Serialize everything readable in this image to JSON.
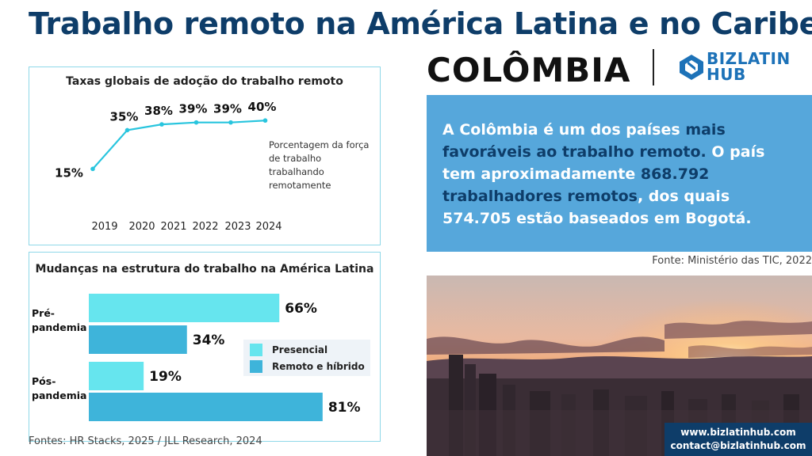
{
  "header": {
    "title": "Trabalho remoto na América Latina e no Caribe:",
    "country": "COLÔMBIA"
  },
  "logo": {
    "line1": "BIZLATIN",
    "line2": "HUB",
    "icon": "bizlatinhub-logo-icon"
  },
  "chart_data": [
    {
      "type": "line",
      "title": "Taxas globais de adoção do trabalho remoto",
      "x": [
        "2019",
        "2020",
        "2021",
        "2022",
        "2023",
        "2024"
      ],
      "series": [
        {
          "values": [
            15,
            35,
            38,
            39,
            39,
            40
          ],
          "labels": [
            "15%",
            "35%",
            "38%",
            "39%",
            "39%",
            "40%"
          ]
        }
      ],
      "annotation": "Porcentagem da força de trabalho trabalhando remotamente",
      "ylim": [
        0,
        45
      ],
      "grid": false,
      "color": "#29c5de"
    },
    {
      "type": "bar",
      "orientation": "horizontal",
      "title": "Mudanças na estrutura do trabalho na América Latina",
      "categories": [
        "Pré-pandemia",
        "Pós-pandemia"
      ],
      "category_lines": [
        [
          "Pré-",
          "pandemia"
        ],
        [
          "Pós-",
          "pandemia"
        ]
      ],
      "series": [
        {
          "name": "Presencial",
          "values": [
            66,
            19
          ],
          "labels": [
            "66%",
            "19%"
          ],
          "color": "#66e5ee"
        },
        {
          "name": "Remoto e híbrido",
          "values": [
            34,
            81
          ],
          "labels": [
            "34%",
            "81%"
          ],
          "color": "#3eb4da"
        }
      ],
      "xlim": [
        0,
        100
      ],
      "legend": "right"
    }
  ],
  "sources": {
    "left": "Fontes: HR Stacks, 2025 / JLL Research, 2024",
    "right": "Fonte: Ministério das TIC, 2022"
  },
  "info": {
    "p1": "A Colômbia é um dos países ",
    "h1": "mais favoráveis ao trabalho remoto.",
    "p2": " O país tem aproximadamente ",
    "h2": "868.792 trabalhadores remotos",
    "p3": ", dos quais 574.705 estão baseados em Bogotá."
  },
  "contact": {
    "website": "www.bizlatinhub.com",
    "email": "contact@bizlatinhub.com"
  },
  "colors": {
    "title": "#0e3d69",
    "accent_blue": "#56a7db",
    "panel_border": "#8fd8e8"
  }
}
